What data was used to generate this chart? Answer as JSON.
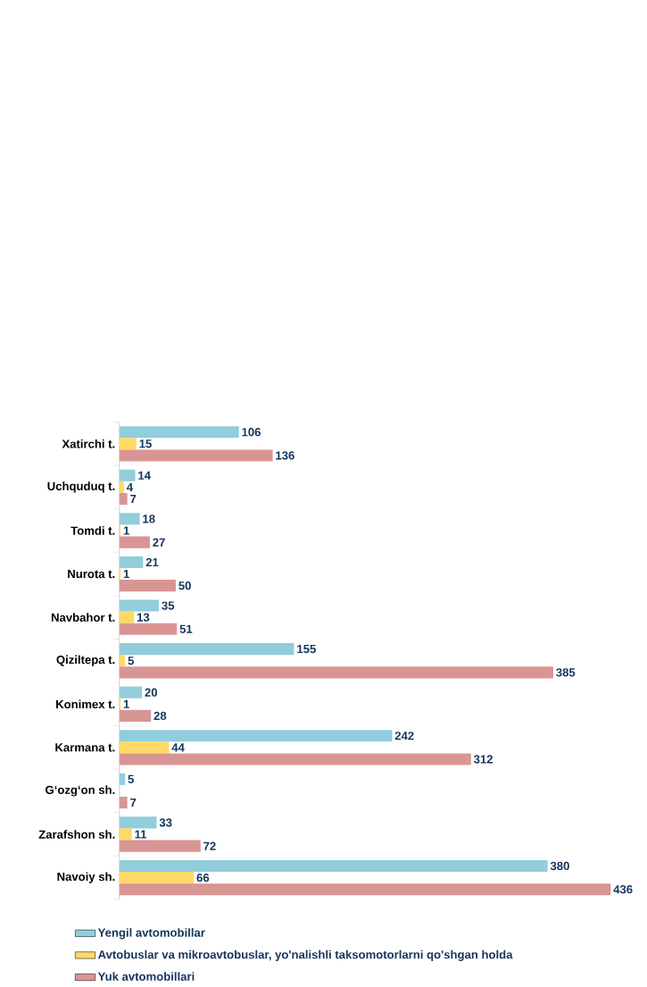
{
  "chart_data": {
    "type": "bar",
    "orientation": "horizontal",
    "data_labels": true,
    "legend": "bottom",
    "categories": [
      "Xatirchi t.",
      "Uchquduq t.",
      "Tomdi t.",
      "Nurota t.",
      "Navbahor t.",
      "Qiziltepa t.",
      "Konimex t.",
      "Karmana t.",
      "G‘ozg‘on sh.",
      "Zarafshon sh.",
      "Navoiy sh."
    ],
    "series": [
      {
        "name": "Yengil avtomobillar",
        "color": "#92cddc",
        "values": [
          106,
          14,
          18,
          21,
          35,
          155,
          20,
          242,
          5,
          33,
          380
        ]
      },
      {
        "name": "Avtobuslar va mikroavtobuslar, yo'nalishli taksomotorlarni qo'shgan holda",
        "color": "#ffd966",
        "values": [
          15,
          4,
          1,
          1,
          13,
          5,
          1,
          44,
          null,
          11,
          66
        ]
      },
      {
        "name": "Yuk avtomobillari",
        "color": "#d99594",
        "values": [
          136,
          7,
          27,
          50,
          51,
          385,
          28,
          312,
          7,
          72,
          436
        ]
      }
    ]
  }
}
